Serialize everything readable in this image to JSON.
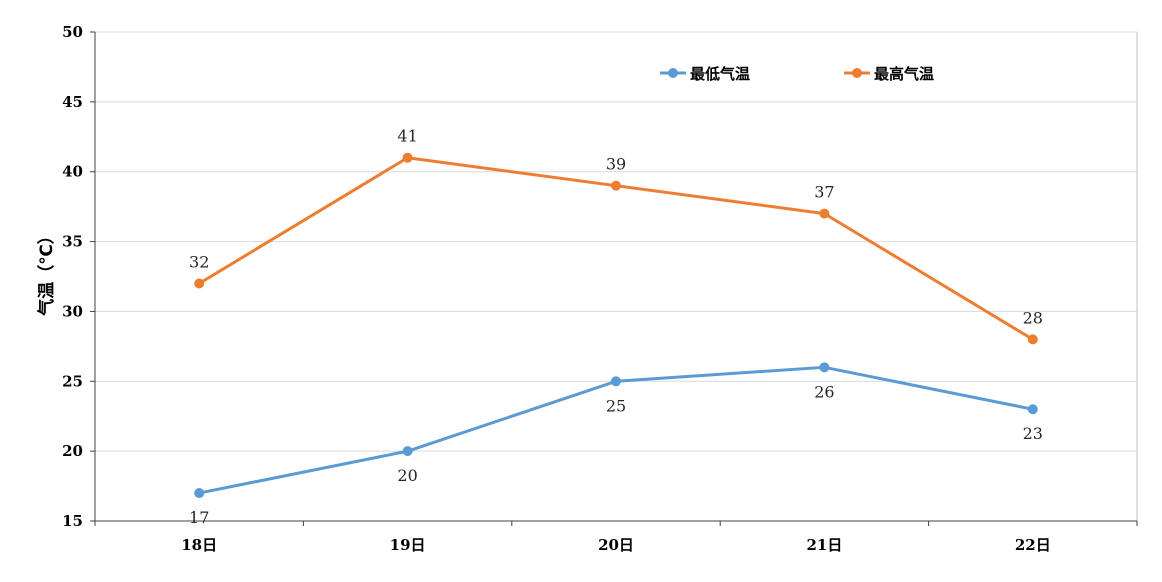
{
  "chart_data": {
    "type": "line",
    "categories": [
      "18日",
      "19日",
      "20日",
      "21日",
      "22日"
    ],
    "series": [
      {
        "name": "最低气温",
        "values": [
          17,
          20,
          25,
          26,
          23
        ],
        "color": "#5B9BD5",
        "label_position": "below"
      },
      {
        "name": "最高气温",
        "values": [
          32,
          41,
          39,
          37,
          28
        ],
        "color": "#ED7D31",
        "label_position": "above"
      }
    ],
    "title": "",
    "xlabel": "",
    "ylabel": "气温（℃）",
    "ylim": [
      15,
      50
    ],
    "yticks": [
      15,
      20,
      25,
      30,
      35,
      40,
      45,
      50
    ],
    "grid": true,
    "legend_position": "top-right"
  }
}
